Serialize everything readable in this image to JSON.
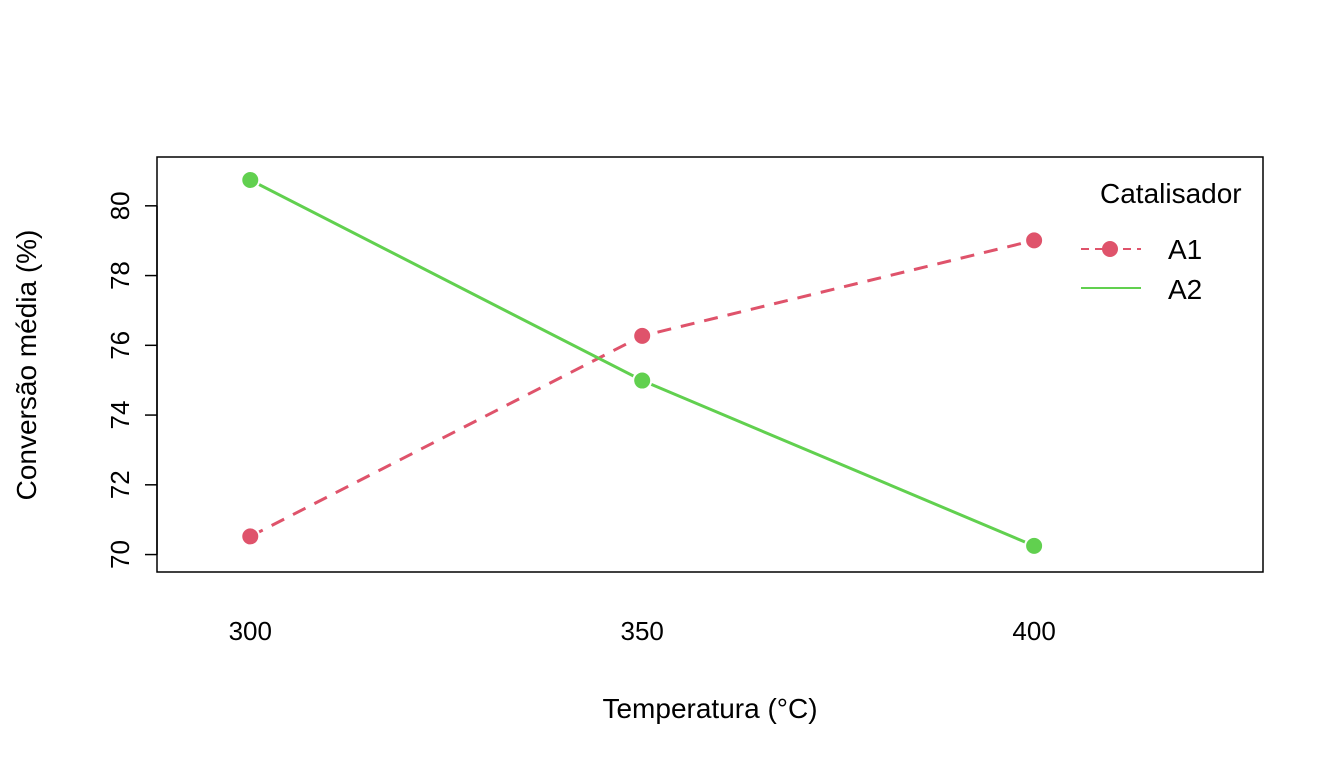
{
  "chart_data": {
    "type": "line",
    "title": "",
    "xlabel": "Temperatura (°C)",
    "ylabel": "Conversão média (%)",
    "x": [
      300,
      350,
      400
    ],
    "x_ticks": [
      "300",
      "350",
      "400"
    ],
    "y_ticks": [
      70,
      72,
      74,
      76,
      78,
      80
    ],
    "xlim": [
      288.1,
      429.2
    ],
    "ylim": [
      69.5,
      81.4
    ],
    "grid": false,
    "legend": {
      "title": "Catalisador",
      "placement": "top-right"
    },
    "series": [
      {
        "name": "A1",
        "values": [
          70.52,
          76.27,
          79.01
        ],
        "color": "#DF536B",
        "dash": "dashed",
        "marker": "circle"
      },
      {
        "name": "A2",
        "values": [
          80.74,
          74.99,
          70.25
        ],
        "color": "#61D04F",
        "dash": "solid",
        "marker": "circle"
      }
    ]
  }
}
